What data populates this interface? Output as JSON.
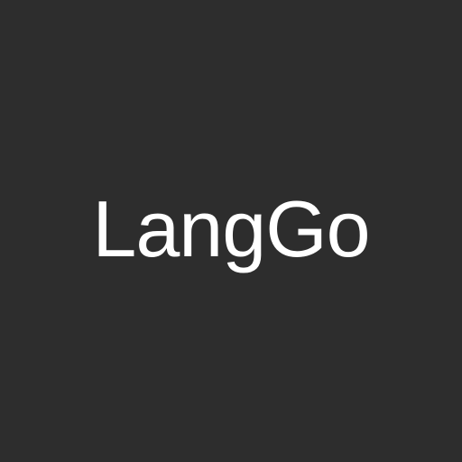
{
  "splash": {
    "app_name": "LangGo",
    "background_color": "#2d2d2d",
    "text_color": "#ffffff"
  }
}
